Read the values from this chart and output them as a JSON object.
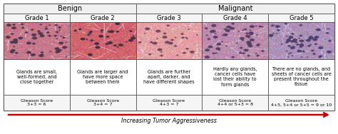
{
  "title_benign": "Benign",
  "title_malignant": "Malignant",
  "grades": [
    "Grade 1",
    "Grade 2",
    "Grade 3",
    "Grade 4",
    "Grade 5"
  ],
  "descriptions": [
    "Glands are small,\nwell-formed, and\nclose together",
    "Glands are larger and\nhave more space\nbetween them",
    "Glands are further\napart, darker, and\nhave different shapes",
    "Hardly any glands,\ncancer cells have\nlost their ability to\nform glands",
    "There are no glands, and\nsheets of cancer cells are\npresent throughout the\ntissue"
  ],
  "gleason_labels": [
    "Gleason Score\n3+3 = 6",
    "Gleason Score\n3+4 = 7",
    "Gleason Score\n4+3 = 7",
    "Gleason Score\n4+4 or 5+3 = 8",
    "Gleason Score\n4+5, 5+4 or 5+5 = 9 or 10"
  ],
  "arrow_label": "Increasing Tumor Aggressiveness",
  "border_color": "#555555",
  "arrow_color": "#cc0000",
  "header_bg": "#f0f0f0",
  "grade_bg": "#f5f5f5",
  "gleason_bg": "#f5f5f5",
  "desc_bg": "#ffffff",
  "fig_bg": "#ffffff",
  "img_base_colors": [
    "#c87888",
    "#c87878",
    "#e8a8a8",
    "#c8a0b8",
    "#b898b8"
  ],
  "img_dark_colors": [
    "#604858",
    "#583848",
    "#784858",
    "#585070",
    "#504868"
  ],
  "img_light_colors": [
    "#e8c0c8",
    "#e8b8b8",
    "#f8d8d8",
    "#d8c8d8",
    "#d0c0d8"
  ]
}
